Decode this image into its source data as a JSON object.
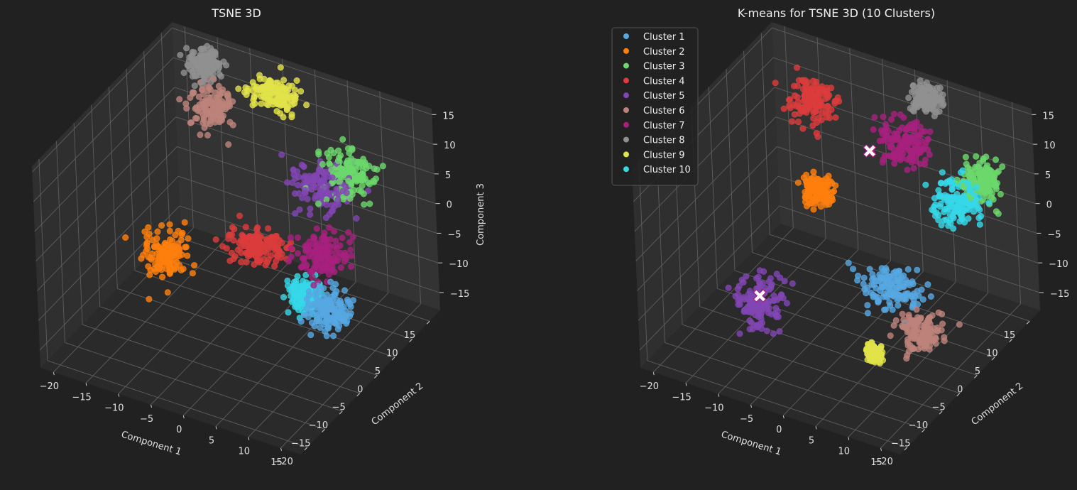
{
  "chart_data": [
    {
      "type": "scatter",
      "title": "TSNE 3D",
      "xlabel": "Component 1",
      "ylabel": "Component 2",
      "zlabel": "Component 3",
      "xlim": [
        -22,
        18
      ],
      "ylim": [
        -22,
        18
      ],
      "zlim": [
        -18,
        16
      ],
      "x_ticks": [
        -20,
        -15,
        -10,
        -5,
        0,
        5,
        10,
        15
      ],
      "y_ticks": [
        -20,
        -15,
        -10,
        -5,
        0,
        5,
        10,
        15
      ],
      "z_ticks": [
        -15,
        -10,
        -5,
        0,
        5,
        10,
        15
      ],
      "grid": true,
      "legend": false,
      "groups": [
        {
          "color": "#56a8e2",
          "center": [
            12,
            -2,
            -8
          ],
          "spread": [
            3.0,
            3.0,
            2.5
          ]
        },
        {
          "color": "#ff7f0e",
          "center": [
            -16,
            3,
            -12
          ],
          "spread": [
            2.5,
            3.0,
            3.5
          ]
        },
        {
          "color": "#6cd86c",
          "center": [
            8,
            12,
            5
          ],
          "spread": [
            3.5,
            3.0,
            3.0
          ]
        },
        {
          "color": "#dc3c3c",
          "center": [
            -2,
            4,
            -6
          ],
          "spread": [
            4.0,
            3.0,
            2.0
          ]
        },
        {
          "color": "#8246b4",
          "center": [
            5,
            10,
            3
          ],
          "spread": [
            4.0,
            3.5,
            3.0
          ]
        },
        {
          "color": "#bd837a",
          "center": [
            -14,
            14,
            7
          ],
          "spread": [
            2.5,
            2.5,
            2.5
          ]
        },
        {
          "color": "#a8207e",
          "center": [
            8,
            4,
            -4
          ],
          "spread": [
            3.0,
            3.0,
            3.0
          ]
        },
        {
          "color": "#909090",
          "center": [
            -16,
            16,
            12
          ],
          "spread": [
            2.0,
            2.0,
            2.0
          ]
        },
        {
          "color": "#e2e24a",
          "center": [
            -4,
            14,
            13
          ],
          "spread": [
            3.5,
            2.5,
            2.0
          ]
        },
        {
          "color": "#36d8e8",
          "center": [
            6,
            2,
            -10
          ],
          "spread": [
            2.0,
            2.0,
            2.0
          ]
        }
      ]
    },
    {
      "type": "scatter",
      "title": "K-means for TSNE 3D (10 Clusters)",
      "xlabel": "Component 1",
      "ylabel": "Component 2",
      "zlabel": "Component 3",
      "xlim": [
        -22,
        18
      ],
      "ylim": [
        -22,
        18
      ],
      "zlim": [
        -18,
        16
      ],
      "x_ticks": [
        -20,
        -15,
        -10,
        -5,
        0,
        5,
        10,
        15
      ],
      "y_ticks": [
        -20,
        -15,
        -10,
        -5,
        0,
        5,
        10,
        15
      ],
      "z_ticks": [
        -15,
        -10,
        -5,
        0,
        5,
        10,
        15
      ],
      "grid": true,
      "legend": "top-left",
      "series": [
        {
          "name": "Cluster 1",
          "color": "#56a8e2",
          "center": [
            4,
            2,
            -10
          ],
          "spread": [
            4.0,
            3.0,
            2.5
          ]
        },
        {
          "name": "Cluster 2",
          "color": "#ff7f0e",
          "center": [
            -10,
            8,
            -2
          ],
          "spread": [
            2.0,
            2.0,
            2.0
          ]
        },
        {
          "name": "Cluster 3",
          "color": "#6cd86c",
          "center": [
            12,
            14,
            4
          ],
          "spread": [
            2.5,
            2.5,
            2.5
          ]
        },
        {
          "name": "Cluster 4",
          "color": "#dc3c3c",
          "center": [
            -14,
            14,
            8
          ],
          "spread": [
            3.0,
            3.0,
            3.0
          ]
        },
        {
          "name": "Cluster 5",
          "color": "#8246b4",
          "center": [
            -12,
            -6,
            -13
          ],
          "spread": [
            2.5,
            3.0,
            3.5
          ]
        },
        {
          "name": "Cluster 6",
          "color": "#bd837a",
          "center": [
            13,
            -6,
            -9
          ],
          "spread": [
            2.5,
            2.5,
            2.5
          ]
        },
        {
          "name": "Cluster 7",
          "color": "#a8207e",
          "center": [
            0,
            14,
            6
          ],
          "spread": [
            3.0,
            3.0,
            3.0
          ]
        },
        {
          "name": "Cluster 8",
          "color": "#909090",
          "center": [
            2,
            18,
            12
          ],
          "spread": [
            2.0,
            2.0,
            2.0
          ]
        },
        {
          "name": "Cluster 9",
          "color": "#e2e24a",
          "center": [
            5,
            -5,
            -16
          ],
          "spread": [
            1.0,
            1.0,
            1.0
          ]
        },
        {
          "name": "Cluster 10",
          "color": "#36d8e8",
          "center": [
            10,
            10,
            2
          ],
          "spread": [
            3.0,
            3.0,
            3.0
          ]
        }
      ],
      "centroids": [
        [
          -3,
          10,
          6
        ],
        [
          -12,
          -6,
          -12
        ]
      ]
    }
  ]
}
